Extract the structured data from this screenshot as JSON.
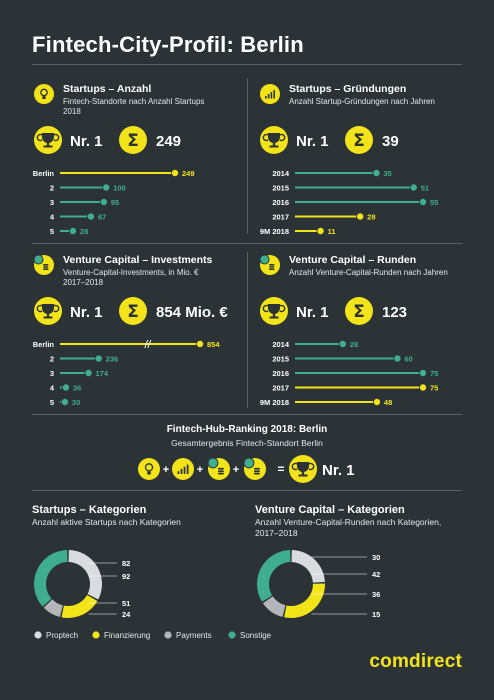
{
  "page_title": "Fintech-City-Profil: Berlin",
  "brand": "comdirect",
  "colors": {
    "background": "#2b3337",
    "yellow": "#f2e419",
    "teal": "#3fae8f",
    "gray": "#b3b7ba",
    "white": "#ffffff",
    "line": "#56616a"
  },
  "panels": [
    {
      "key": "startups_count",
      "title": "Startups – Anzahl",
      "subtitle_lines": [
        "Fintech-Standorte nach Anzahl Startups",
        "2018"
      ],
      "icon": "lightbulb-icon",
      "rank": "Nr. 1",
      "total": "249"
    },
    {
      "key": "startups_founded",
      "title": "Startups – Gründungen",
      "subtitle_lines": [
        "Anzahl Startup-Gründungen nach Jahren"
      ],
      "icon": "bar-chart-icon",
      "rank": "Nr. 1",
      "total": "39"
    },
    {
      "key": "vc_investments",
      "title": "Venture Capital – Investments",
      "subtitle_lines": [
        "Venture-Capital-Investments, in Mio. €",
        "2017–2018"
      ],
      "icon": "coins-euro-icon",
      "rank": "Nr. 1",
      "total": "854 Mio. €"
    },
    {
      "key": "vc_rounds",
      "title": "Venture Capital – Runden",
      "subtitle_lines": [
        "Anzahl Venture-Capital-Runden nach Jahren"
      ],
      "icon": "coins-euro-icon",
      "rank": "Nr. 1",
      "total": "123"
    }
  ],
  "hub": {
    "title": "Fintech-Hub-Ranking 2018: Berlin",
    "subtitle": "Gesamtergebnis Fintech-Standort Berlin",
    "equation": {
      "plus": "+",
      "equals": "=",
      "result": "Nr. 1"
    },
    "icons": [
      "lightbulb-icon",
      "bar-chart-icon",
      "coins-euro-icon",
      "coins-euro-icon"
    ]
  },
  "donuts": [
    {
      "title": "Startups – Kategorien",
      "subtitle_lines": [
        "Anzahl aktive Startups nach Kategorien"
      ]
    },
    {
      "title": "Venture Capital – Kategorien",
      "subtitle_lines": [
        "Anzahl Venture-Capital-Runden nach Kategorien,",
        "2017–2018"
      ]
    }
  ],
  "legend": [
    {
      "label": "Proptech",
      "color": "#ffffff"
    },
    {
      "label": "Finanzierung",
      "color": "#f2e419"
    },
    {
      "label": "Payments",
      "color": "#b3b7ba"
    },
    {
      "label": "Sonstige",
      "color": "#3fae8f"
    }
  ],
  "chart_data": [
    {
      "type": "bar",
      "title": "Startups – Anzahl",
      "categories": [
        "Berlin",
        "2",
        "3",
        "4",
        "5"
      ],
      "values": [
        249,
        100,
        95,
        67,
        28
      ],
      "highlight_index": 0
    },
    {
      "type": "bar",
      "title": "Startups – Gründungen",
      "categories": [
        "2014",
        "2015",
        "2016",
        "2017",
        "9M 2018"
      ],
      "values": [
        35,
        51,
        55,
        28,
        11
      ],
      "highlight_indices": [
        3,
        4
      ]
    },
    {
      "type": "bar",
      "title": "Venture Capital – Investments",
      "categories": [
        "Berlin",
        "2",
        "3",
        "4",
        "5"
      ],
      "values": [
        854,
        236,
        174,
        36,
        30
      ],
      "highlight_index": 0,
      "axis_break": true
    },
    {
      "type": "bar",
      "title": "Venture Capital – Runden",
      "categories": [
        "2014",
        "2015",
        "2016",
        "2017",
        "9M 2018"
      ],
      "values": [
        28,
        60,
        75,
        75,
        48
      ],
      "highlight_indices": [
        3,
        4
      ]
    },
    {
      "type": "pie",
      "title": "Startups – Kategorien",
      "series": [
        {
          "name": "Proptech",
          "values": [
            82
          ]
        },
        {
          "name": "Finanzierung",
          "values": [
            51
          ]
        },
        {
          "name": "Payments",
          "values": [
            24
          ]
        },
        {
          "name": "Sonstige",
          "values": [
            92
          ]
        }
      ],
      "value_labels": [
        "82",
        "92",
        "51",
        "24"
      ]
    },
    {
      "type": "pie",
      "title": "Venture Capital – Kategorien",
      "series": [
        {
          "name": "Proptech",
          "values": [
            30
          ]
        },
        {
          "name": "Finanzierung",
          "values": [
            36
          ]
        },
        {
          "name": "Payments",
          "values": [
            15
          ]
        },
        {
          "name": "Sonstige",
          "values": [
            42
          ]
        }
      ],
      "value_labels": [
        "30",
        "42",
        "36",
        "15"
      ]
    }
  ]
}
